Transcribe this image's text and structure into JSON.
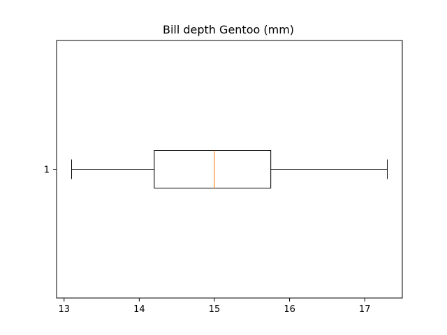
{
  "chart_data": {
    "type": "boxplot",
    "title": "Bill depth Gentoo (mm)",
    "orientation": "horizontal",
    "xlabel": "",
    "ylabel": "",
    "xlim": [
      12.9,
      17.5
    ],
    "x_ticks": [
      13,
      14,
      15,
      16,
      17
    ],
    "categories": [
      "1"
    ],
    "boxes": [
      {
        "label": "1",
        "whisker_low": 13.1,
        "q1": 14.2,
        "median": 15.0,
        "q3": 15.75,
        "whisker_high": 17.3
      }
    ],
    "grid": false,
    "colors": {
      "box": "#000000",
      "median": "#ff7f0e",
      "axes": "#000000"
    }
  }
}
